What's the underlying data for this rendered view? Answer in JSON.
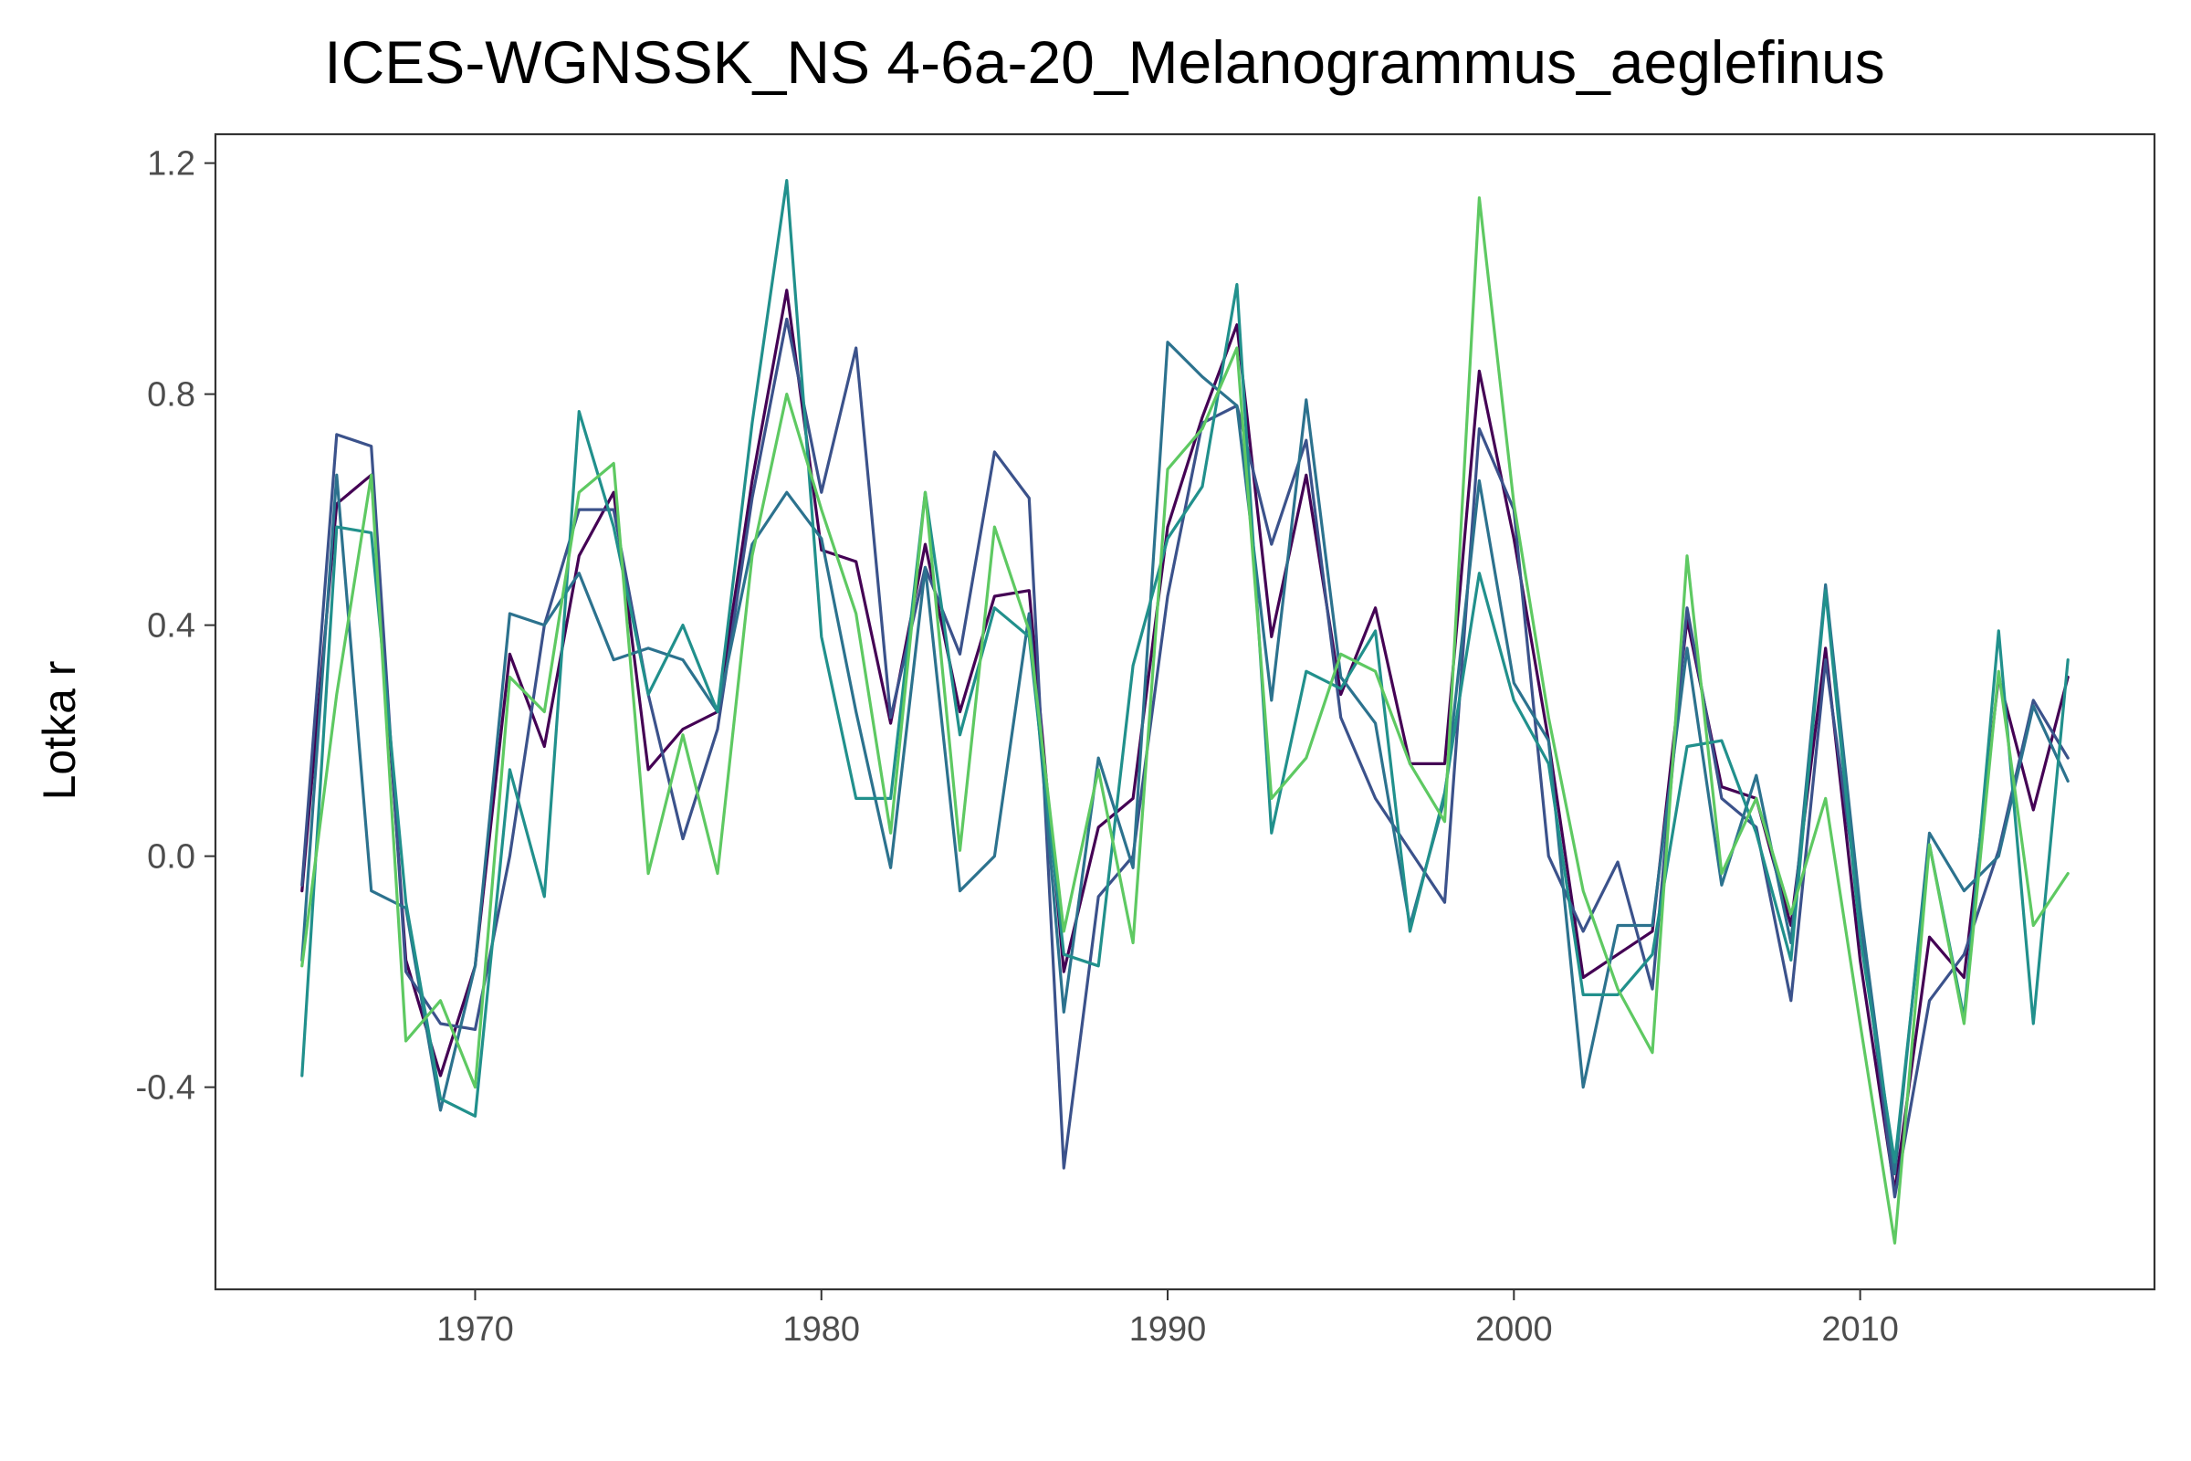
{
  "chart_data": {
    "type": "line",
    "title": "ICES-WGNSSK_NS  4-6a-20_Melanogrammus_aeglefinus",
    "xlabel": "",
    "ylabel": "Lotka r",
    "xlim": [
      1962.5,
      2018.5
    ],
    "ylim": [
      -0.75,
      1.25
    ],
    "x_ticks": [
      1970,
      1980,
      1990,
      2000,
      2010
    ],
    "y_ticks": [
      -0.4,
      0.0,
      0.4,
      0.8,
      1.2
    ],
    "x_tick_labels": [
      "1970",
      "1980",
      "1990",
      "2000",
      "2010"
    ],
    "y_tick_labels": [
      "-0.4",
      "0.0",
      "0.4",
      "0.8",
      "1.2"
    ],
    "grid": false,
    "legend": "none",
    "x": [
      1965,
      1966,
      1967,
      1968,
      1969,
      1970,
      1971,
      1972,
      1973,
      1974,
      1975,
      1976,
      1977,
      1978,
      1979,
      1980,
      1981,
      1982,
      1983,
      1984,
      1985,
      1986,
      1987,
      1988,
      1989,
      1990,
      1991,
      1992,
      1993,
      1994,
      1995,
      1996,
      1997,
      1998,
      1999,
      2000,
      2001,
      2002,
      2003,
      2004,
      2005,
      2006,
      2007,
      2008,
      2009,
      2010,
      2011,
      2012,
      2013,
      2014,
      2015,
      2016
    ],
    "series": [
      {
        "color": "#440154",
        "values": [
          -0.06,
          0.61,
          0.66,
          -0.18,
          -0.38,
          -0.19,
          0.35,
          0.19,
          0.52,
          0.63,
          0.15,
          0.22,
          0.25,
          0.65,
          0.98,
          0.53,
          0.51,
          0.23,
          0.54,
          0.25,
          0.45,
          0.46,
          -0.2,
          0.05,
          0.1,
          0.57,
          0.76,
          0.92,
          0.38,
          0.66,
          0.28,
          0.43,
          0.16,
          0.16,
          0.84,
          0.55,
          0.2,
          -0.21,
          -0.17,
          -0.13,
          0.41,
          0.12,
          0.1,
          -0.12,
          0.36,
          -0.18,
          -0.58,
          -0.14,
          -0.21,
          0.31,
          0.08,
          0.31
        ]
      },
      {
        "color": "#3b528b",
        "values": [
          -0.05,
          0.73,
          0.71,
          -0.2,
          -0.29,
          -0.3,
          0.0,
          0.4,
          0.6,
          0.6,
          0.28,
          0.03,
          0.22,
          0.62,
          0.93,
          0.63,
          0.88,
          0.24,
          0.5,
          0.35,
          0.7,
          0.62,
          -0.54,
          -0.07,
          0.0,
          0.45,
          0.75,
          0.78,
          0.54,
          0.72,
          0.24,
          0.1,
          0.01,
          -0.08,
          0.74,
          0.6,
          0.0,
          -0.13,
          -0.01,
          -0.23,
          0.43,
          0.1,
          0.05,
          -0.25,
          0.34,
          -0.1,
          -0.59,
          -0.25,
          -0.17,
          0.01,
          0.27,
          0.17
        ]
      },
      {
        "color": "#2c728e",
        "values": [
          -0.18,
          0.66,
          -0.06,
          -0.09,
          -0.44,
          -0.19,
          0.42,
          0.4,
          0.49,
          0.34,
          0.36,
          0.34,
          0.25,
          0.54,
          0.63,
          0.55,
          0.25,
          -0.02,
          0.5,
          -0.06,
          0.0,
          0.42,
          -0.27,
          0.17,
          -0.02,
          0.89,
          0.83,
          0.78,
          0.27,
          0.79,
          0.31,
          0.23,
          -0.12,
          0.1,
          0.65,
          0.3,
          0.2,
          -0.4,
          -0.12,
          -0.12,
          0.36,
          -0.05,
          0.14,
          -0.15,
          0.47,
          -0.09,
          -0.55,
          0.04,
          -0.06,
          0.0,
          0.26,
          0.13
        ]
      },
      {
        "color": "#21908c",
        "values": [
          -0.38,
          0.57,
          0.56,
          -0.08,
          -0.42,
          -0.45,
          0.15,
          -0.07,
          0.77,
          0.57,
          0.28,
          0.4,
          0.25,
          0.75,
          1.17,
          0.38,
          0.1,
          0.1,
          0.63,
          0.21,
          0.43,
          0.38,
          -0.17,
          -0.19,
          0.33,
          0.55,
          0.64,
          0.99,
          0.04,
          0.32,
          0.29,
          0.39,
          -0.13,
          0.11,
          0.49,
          0.27,
          0.16,
          -0.24,
          -0.24,
          -0.17,
          0.19,
          0.2,
          0.04,
          -0.18,
          0.46,
          -0.14,
          -0.53,
          0.02,
          -0.28,
          0.39,
          -0.29,
          0.34
        ]
      },
      {
        "color": "#5ec962",
        "values": [
          -0.19,
          0.28,
          0.66,
          -0.32,
          -0.25,
          -0.4,
          0.31,
          0.25,
          0.63,
          0.68,
          -0.03,
          0.21,
          -0.03,
          0.52,
          0.8,
          0.6,
          0.42,
          0.04,
          0.63,
          0.01,
          0.57,
          0.39,
          -0.13,
          0.15,
          -0.15,
          0.67,
          0.74,
          0.88,
          0.1,
          0.17,
          0.35,
          0.32,
          0.16,
          0.06,
          1.14,
          0.61,
          0.24,
          -0.06,
          -0.23,
          -0.34,
          0.52,
          -0.03,
          0.1,
          -0.1,
          0.1,
          -0.29,
          -0.67,
          0.02,
          -0.29,
          0.32,
          -0.12,
          -0.03
        ]
      }
    ]
  }
}
